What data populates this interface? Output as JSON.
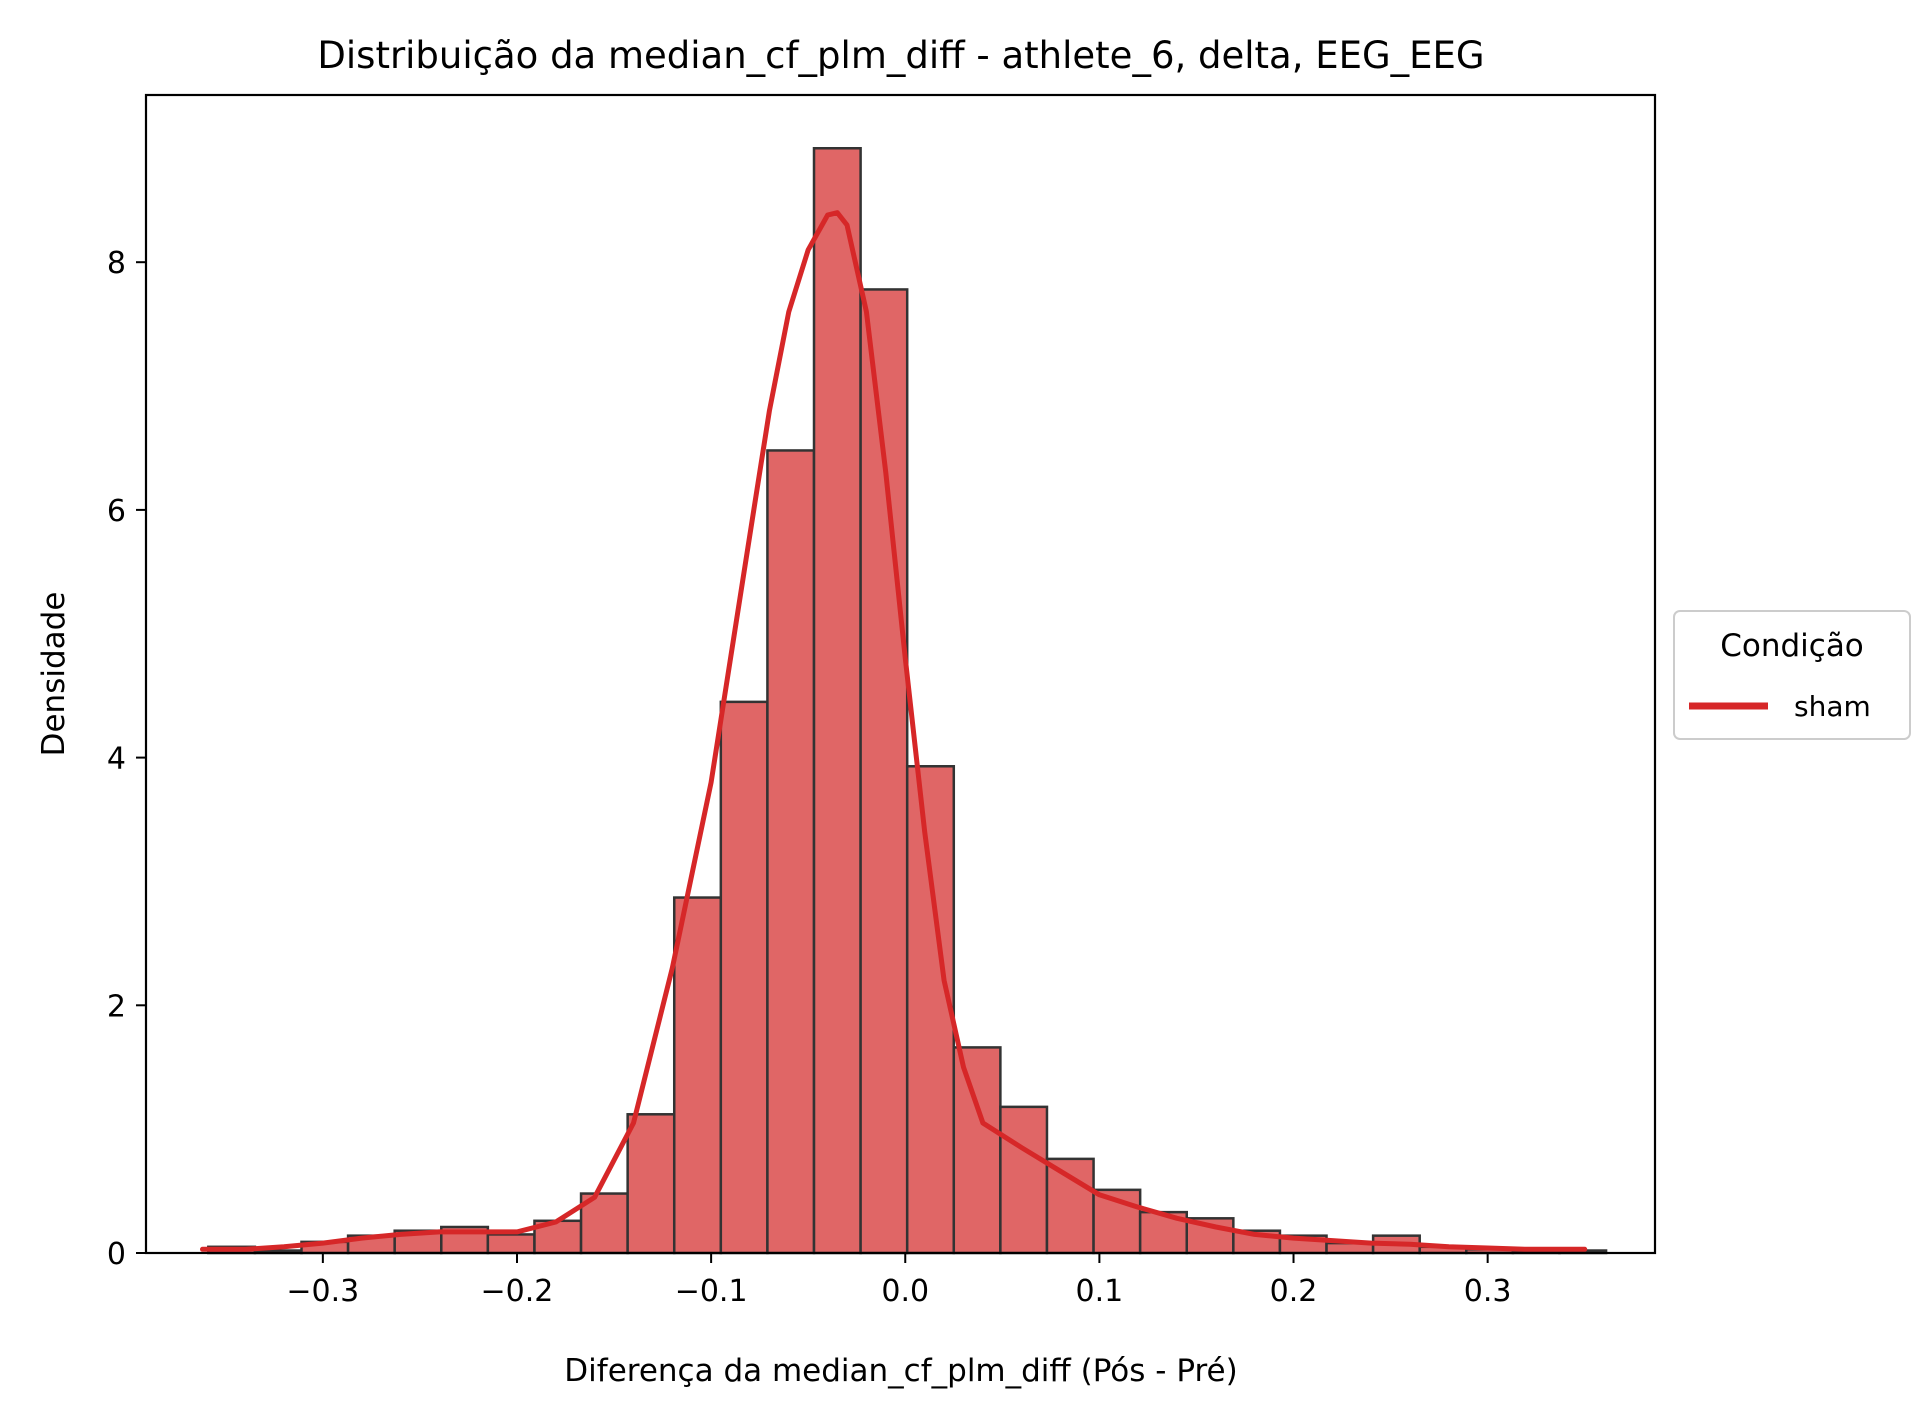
{
  "chart_data": {
    "type": "bar",
    "title": "Distribuição da median_cf_plm_diff - athlete_6, delta, EEG_EEG",
    "xlabel": "Diferença da median_cf_plm_diff (Pós - Pré)",
    "ylabel": "Densidade",
    "xlim": [
      -0.3911,
      0.3862
    ],
    "ylim": [
      0,
      9.35
    ],
    "xticks": [
      -0.3,
      -0.2,
      -0.1,
      0.0,
      0.1,
      0.2,
      0.3
    ],
    "xtick_labels": [
      "−0.3",
      "−0.2",
      "−0.1",
      "0.0",
      "0.1",
      "0.2",
      "0.3"
    ],
    "yticks": [
      0,
      2,
      4,
      6,
      8
    ],
    "ytick_labels": [
      "0",
      "2",
      "4",
      "6",
      "8"
    ],
    "grid": false,
    "legend": {
      "title": "Condição",
      "position": "center-right outside",
      "entries": [
        "sham"
      ]
    },
    "colors": {
      "bar_fill": "#e06666",
      "bar_edge": "#333333",
      "kde_line": "#d62728"
    },
    "histogram": {
      "bin_edges": [
        -0.359,
        -0.335,
        -0.311,
        -0.287,
        -0.263,
        -0.239,
        -0.215,
        -0.191,
        -0.167,
        -0.143,
        -0.119,
        -0.095,
        -0.071,
        -0.047,
        -0.023,
        0.001,
        0.025,
        0.049,
        0.073,
        0.097,
        0.121,
        0.145,
        0.169,
        0.193,
        0.217,
        0.241,
        0.265,
        0.289,
        0.313,
        0.337,
        0.361
      ],
      "density": [
        0.05,
        0.02,
        0.09,
        0.14,
        0.18,
        0.21,
        0.15,
        0.26,
        0.48,
        1.12,
        2.87,
        4.45,
        6.48,
        8.92,
        7.78,
        3.93,
        1.66,
        1.18,
        0.76,
        0.51,
        0.33,
        0.28,
        0.18,
        0.14,
        0.08,
        0.14,
        0.05,
        0.03,
        0.02,
        0.02
      ]
    },
    "series": [
      {
        "name": "sham",
        "x": [
          -0.362,
          -0.34,
          -0.32,
          -0.3,
          -0.28,
          -0.26,
          -0.24,
          -0.22,
          -0.2,
          -0.18,
          -0.16,
          -0.14,
          -0.12,
          -0.1,
          -0.09,
          -0.08,
          -0.07,
          -0.06,
          -0.05,
          -0.04,
          -0.035,
          -0.03,
          -0.02,
          -0.01,
          0.0,
          0.01,
          0.02,
          0.03,
          0.04,
          0.06,
          0.08,
          0.1,
          0.12,
          0.14,
          0.16,
          0.18,
          0.2,
          0.22,
          0.24,
          0.26,
          0.28,
          0.3,
          0.32,
          0.35
        ],
        "y": [
          0.03,
          0.03,
          0.05,
          0.08,
          0.12,
          0.15,
          0.17,
          0.17,
          0.17,
          0.25,
          0.45,
          1.05,
          2.3,
          3.8,
          4.8,
          5.8,
          6.8,
          7.6,
          8.1,
          8.38,
          8.4,
          8.3,
          7.6,
          6.3,
          4.8,
          3.4,
          2.2,
          1.5,
          1.05,
          0.85,
          0.66,
          0.47,
          0.37,
          0.28,
          0.21,
          0.15,
          0.12,
          0.1,
          0.08,
          0.07,
          0.05,
          0.04,
          0.03,
          0.03
        ]
      }
    ]
  }
}
